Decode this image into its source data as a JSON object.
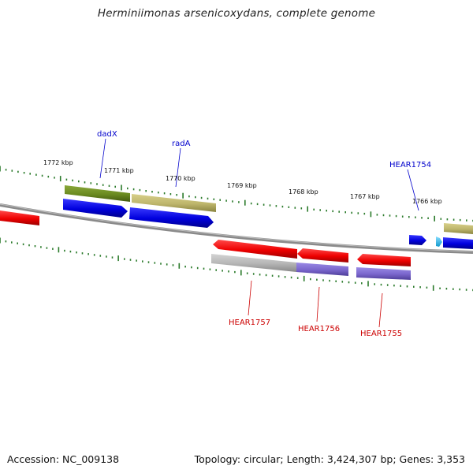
{
  "title": "Herminiimonas arsenicoxydans, complete genome",
  "accession": "Accession: NC_009138",
  "summary": "Topology: circular; Length: 3,424,307 bp; Genes: 3,353",
  "kbp_labels": [
    "1772 kbp",
    "1771 kbp",
    "1770 kbp",
    "1769 kbp",
    "1768 kbp",
    "1767 kbp",
    "1766 kbp"
  ],
  "gene_labels": {
    "dadX": "dadX",
    "radA": "radA",
    "HEAR1754": "HEAR1754",
    "HEAR1757": "HEAR1757",
    "HEAR1756": "HEAR1756",
    "HEAR1755": "HEAR1755"
  },
  "colors": {
    "forward_label": "#0000cc",
    "reverse_label": "#cc0000",
    "tick": "#2a7a2a",
    "backbone": "#808080",
    "cds_red": "#ee1111",
    "cds_blue": "#1111ee",
    "gene_olive": "#6e8a22",
    "gene_khaki": "#bdb56b",
    "gene_gray": "#b0b0b0",
    "gene_purple": "#7a66cc",
    "cds_cyan": "#33bbee"
  }
}
